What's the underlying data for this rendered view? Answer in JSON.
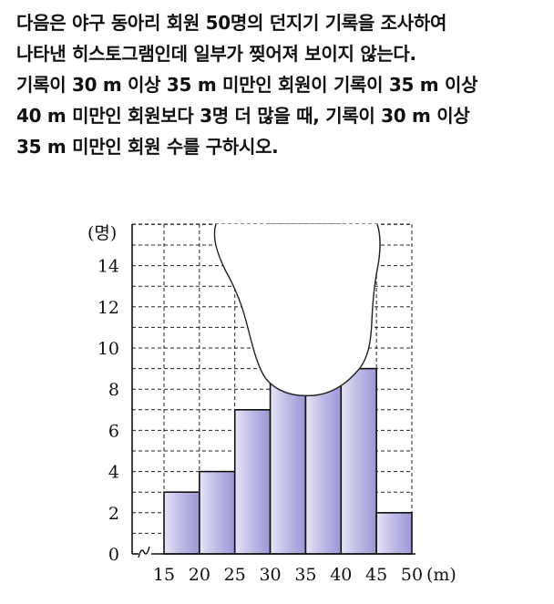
{
  "problem": {
    "lines": [
      "다음은 야구 동아리 회원 50명의 던지기 기록을 조사하여",
      "나타낸 히스토그램인데 일부가 찢어져 보이지 않는다.",
      "기록이 30 m 이상 35 m 미만인 회원이 기록이 35 m 이상",
      "40 m 미만인 회원보다 3명 더 많을 때, 기록이 30 m 이상",
      "35 m 미만인 회원 수를 구하시오."
    ]
  },
  "chart_data": {
    "type": "bar",
    "title": "",
    "xlabel": "(m)",
    "ylabel": "(명)",
    "x_ticks": [
      "15",
      "20",
      "25",
      "30",
      "35",
      "40",
      "45",
      "50"
    ],
    "y_ticks": [
      "0",
      "2",
      "4",
      "6",
      "8",
      "10",
      "12",
      "14"
    ],
    "ylim": [
      0,
      16
    ],
    "xlim": [
      15,
      50
    ],
    "grid": "dashed",
    "axis_break": true,
    "bins": [
      {
        "from": 15,
        "to": 20,
        "value": 3,
        "visible": true
      },
      {
        "from": 20,
        "to": 25,
        "value": 4,
        "visible": true
      },
      {
        "from": 25,
        "to": 30,
        "value": 7,
        "visible": true
      },
      {
        "from": 30,
        "to": 35,
        "value": null,
        "visible": false
      },
      {
        "from": 35,
        "to": 40,
        "value": null,
        "visible": false
      },
      {
        "from": 40,
        "to": 45,
        "value": 9,
        "visible": true
      },
      {
        "from": 45,
        "to": 50,
        "value": 2,
        "visible": true
      }
    ],
    "bar_color": "#bdb9e6",
    "torn_region": true
  }
}
